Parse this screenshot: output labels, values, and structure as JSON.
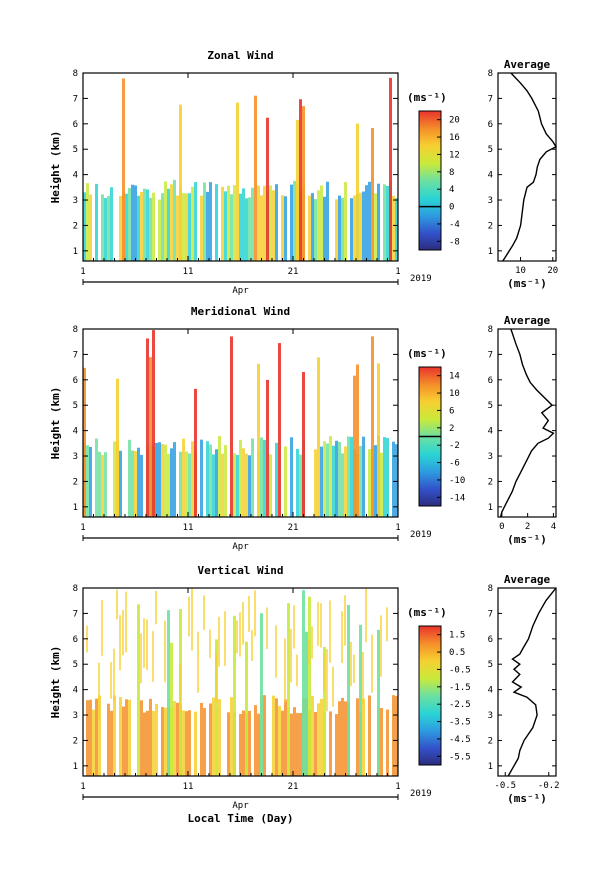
{
  "chart_data": [
    {
      "type": "heatmap",
      "title": "Zonal Wind",
      "ylabel": "Height (km)",
      "ylim": [
        0.6,
        8
      ],
      "yticks": [
        "1",
        "2",
        "3",
        "4",
        "5",
        "6",
        "7",
        "8"
      ],
      "xticks": [
        "1",
        "11",
        "21",
        "1"
      ],
      "month_label": "Apr",
      "year_label": "2019",
      "colorbar": {
        "unit": "(ms⁻¹)",
        "ticks": [
          "-8",
          "-4",
          "0",
          "4",
          "8",
          "12",
          "16",
          "20"
        ],
        "range": [
          -10,
          22
        ],
        "zero_line": 0
      },
      "profile": {
        "title": "Average",
        "xlabel": "(ms⁻¹)",
        "xlim": [
          3,
          21
        ],
        "xticks": [
          "10",
          "20"
        ],
        "tick_values": [
          10,
          20
        ],
        "heights": [
          0.6,
          0.8,
          1.0,
          1.2,
          1.5,
          2.0,
          2.5,
          3.0,
          3.5,
          3.7,
          4.0,
          4.3,
          4.6,
          4.9,
          5.1,
          5.3,
          5.6,
          6.0,
          6.5,
          7.0,
          7.3,
          7.6,
          8.0
        ],
        "values": [
          4.5,
          5.5,
          6.5,
          7.5,
          8.8,
          10.0,
          10.5,
          11.0,
          12.0,
          14.0,
          14.8,
          15.2,
          16.0,
          18.0,
          21.0,
          20.0,
          18.0,
          16.5,
          15.5,
          13.5,
          12.0,
          10.0,
          7.0
        ]
      }
    },
    {
      "type": "heatmap",
      "title": "Meridional Wind",
      "ylabel": "Height (km)",
      "ylim": [
        0.6,
        8
      ],
      "yticks": [
        "1",
        "2",
        "3",
        "4",
        "5",
        "6",
        "7",
        "8"
      ],
      "xticks": [
        "1",
        "11",
        "21",
        "1"
      ],
      "month_label": "Apr",
      "year_label": "2019",
      "colorbar": {
        "unit": "(ms⁻¹)",
        "ticks": [
          "-14",
          "-10",
          "-6",
          "-2",
          "2",
          "6",
          "10",
          "14"
        ],
        "range": [
          -16,
          16
        ],
        "zero_line": 0
      },
      "profile": {
        "title": "Average",
        "xlabel": "(ms⁻¹)",
        "xlim": [
          -0.3,
          4.2
        ],
        "xticks": [
          "0",
          "2",
          "4"
        ],
        "tick_values": [
          0,
          2,
          4
        ],
        "heights": [
          0.6,
          0.8,
          1.0,
          1.3,
          1.6,
          2.0,
          2.4,
          2.8,
          3.2,
          3.5,
          3.7,
          3.9,
          4.1,
          4.4,
          4.7,
          5.0,
          5.3,
          5.6,
          5.9,
          6.2,
          6.6,
          7.0,
          7.4,
          8.0
        ],
        "values": [
          -0.1,
          0.0,
          0.2,
          0.5,
          0.8,
          1.1,
          1.5,
          1.9,
          2.3,
          2.8,
          3.6,
          4.0,
          3.2,
          3.6,
          3.1,
          3.9,
          3.3,
          2.7,
          2.2,
          1.9,
          1.6,
          1.4,
          1.1,
          0.7
        ]
      }
    },
    {
      "type": "heatmap",
      "title": "Vertical Wind",
      "ylabel": "Height (km)",
      "xlabel": "Local Time (Day)",
      "ylim": [
        0.6,
        8
      ],
      "yticks": [
        "1",
        "2",
        "3",
        "4",
        "5",
        "6",
        "7",
        "8"
      ],
      "xticks": [
        "1",
        "11",
        "21",
        "1"
      ],
      "month_label": "Apr",
      "year_label": "2019",
      "colorbar": {
        "unit": "(ms⁻¹)",
        "ticks": [
          "-5.5",
          "-4.5",
          "-3.5",
          "-2.5",
          "-1.5",
          "-0.5",
          "0.5",
          "1.5"
        ],
        "range": [
          -6,
          2
        ]
      },
      "profile": {
        "title": "Average",
        "xlabel": "(ms⁻¹)",
        "xlim": [
          -0.55,
          -0.15
        ],
        "xticks": [
          "-0.5",
          "-0.2"
        ],
        "tick_values": [
          -0.5,
          -0.2
        ],
        "heights": [
          0.6,
          1.0,
          1.3,
          1.6,
          2.0,
          2.5,
          3.0,
          3.4,
          3.7,
          3.9,
          4.1,
          4.3,
          4.6,
          4.8,
          5.0,
          5.2,
          5.4,
          5.6,
          6.0,
          6.5,
          7.0,
          7.5,
          8.0
        ],
        "values": [
          -0.48,
          -0.44,
          -0.41,
          -0.4,
          -0.37,
          -0.31,
          -0.28,
          -0.29,
          -0.35,
          -0.44,
          -0.39,
          -0.45,
          -0.4,
          -0.44,
          -0.4,
          -0.45,
          -0.4,
          -0.38,
          -0.34,
          -0.31,
          -0.27,
          -0.22,
          -0.15
        ]
      }
    }
  ]
}
